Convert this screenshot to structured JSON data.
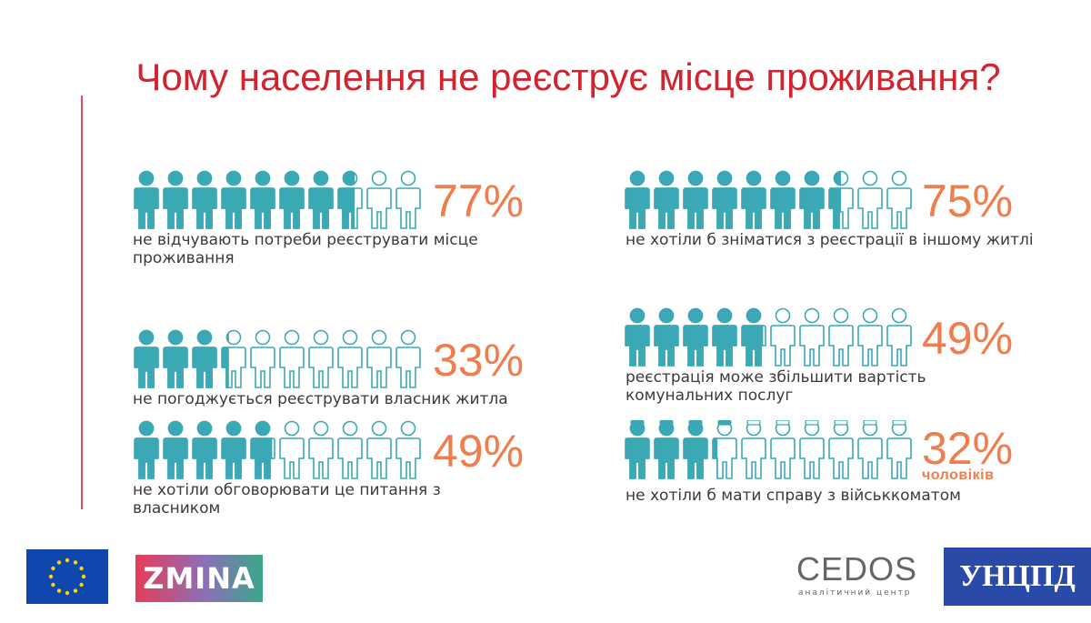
{
  "title": "Чому населення не реєструє місце проживання?",
  "colors": {
    "title": "#d2232f",
    "filled": "#3aa9b5",
    "outline": "#3aa9b5",
    "percent": "#ef7d4d"
  },
  "chart_data": [
    {
      "type": "pictograph",
      "value": 77,
      "icons_total": 10,
      "label": "77%",
      "caption": "не відчувають потреби реєструвати місце проживання"
    },
    {
      "type": "pictograph",
      "value": 75,
      "icons_total": 10,
      "label": "75%",
      "caption": "не хотіли б зніматися з реєстрації в іншому житлі"
    },
    {
      "type": "pictograph",
      "value": 33,
      "icons_total": 10,
      "label": "33%",
      "caption": "не погоджується реєструвати власник житла"
    },
    {
      "type": "pictograph",
      "value": 49,
      "icons_total": 10,
      "label": "49%",
      "caption": "реєстрація може збільшити вартість комунальних послуг"
    },
    {
      "type": "pictograph",
      "value": 49,
      "icons_total": 10,
      "label": "49%",
      "caption": "не хотіли обговорювати це питання з власником"
    },
    {
      "type": "pictograph",
      "value": 32,
      "icons_total": 10,
      "label": "32%",
      "sublabel": "чоловіків",
      "icon_style": "military-cap",
      "caption": "не хотіли б мати справу з військкоматом"
    }
  ],
  "logos": {
    "zmina": "ZMINA",
    "cedos": "CEDOS",
    "cedos_sub": "аналітичний центр",
    "unian": "УНЦПД"
  }
}
